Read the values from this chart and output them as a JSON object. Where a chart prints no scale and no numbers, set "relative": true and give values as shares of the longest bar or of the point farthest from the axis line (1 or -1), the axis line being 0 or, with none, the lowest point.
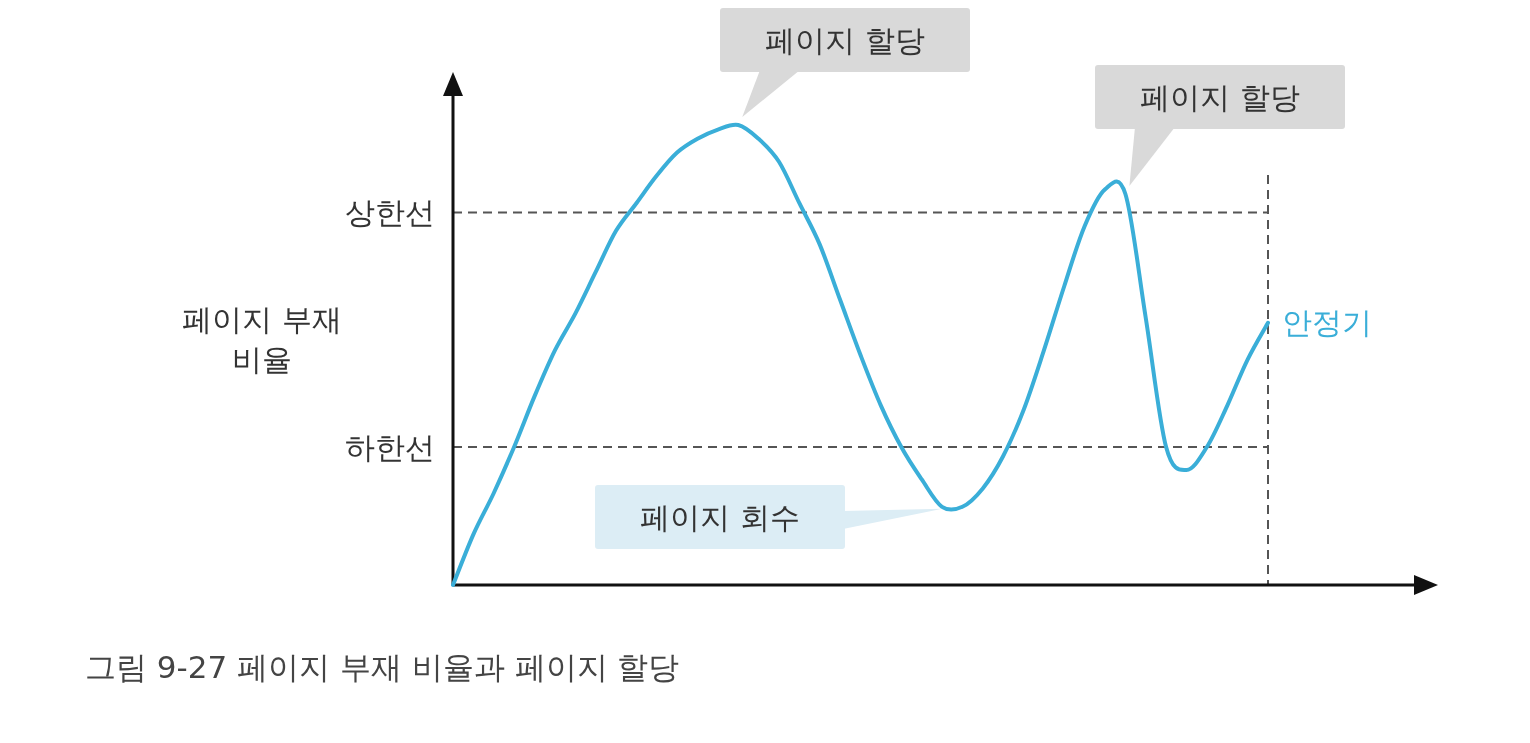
{
  "chart_data": {
    "type": "line",
    "relative": true,
    "title": "그림 9-27  페이지 부재 비율과 페이지 할당",
    "ylabel": "페이지 부재 비율",
    "categories": [
      null,
      null,
      null,
      null,
      null,
      null,
      null,
      null,
      null,
      null,
      null,
      null,
      null,
      null,
      null,
      null,
      null,
      null,
      null,
      null,
      null,
      null,
      null,
      null,
      null,
      null,
      null,
      null,
      null,
      null,
      null,
      null,
      null,
      null,
      null,
      null,
      null,
      null,
      null,
      null,
      null
    ],
    "series": [
      {
        "name": "안정기",
        "color": "#3aaed8",
        "values": [
          0,
          0.11,
          0.2,
          0.3,
          0.41,
          0.51,
          0.59,
          0.68,
          0.77,
          0.83,
          0.89,
          0.94,
          0.97,
          0.99,
          1,
          0.97,
          0.92,
          0.83,
          0.74,
          0.62,
          0.5,
          0.39,
          0.3,
          0.23,
          0.17,
          0.17,
          0.21,
          0.28,
          0.38,
          0.51,
          0.65,
          0.78,
          0.86,
          0.85,
          0.58,
          0.3,
          0.25,
          0.3,
          0.39,
          0.49,
          0.57
        ]
      }
    ],
    "ref_lines": [
      {
        "axis": "y",
        "value": 0.81,
        "label": "상한선",
        "color": "#555555",
        "line_style": "dashed"
      },
      {
        "axis": "y",
        "value": 0.3,
        "label": "하한선",
        "color": "#555555",
        "line_style": "dashed"
      },
      {
        "axis": "x",
        "color": "#555555",
        "line_style": "dashed"
      }
    ],
    "annotations": [
      "페이지 할당",
      "페이지 할당",
      "페이지 회수"
    ]
  }
}
